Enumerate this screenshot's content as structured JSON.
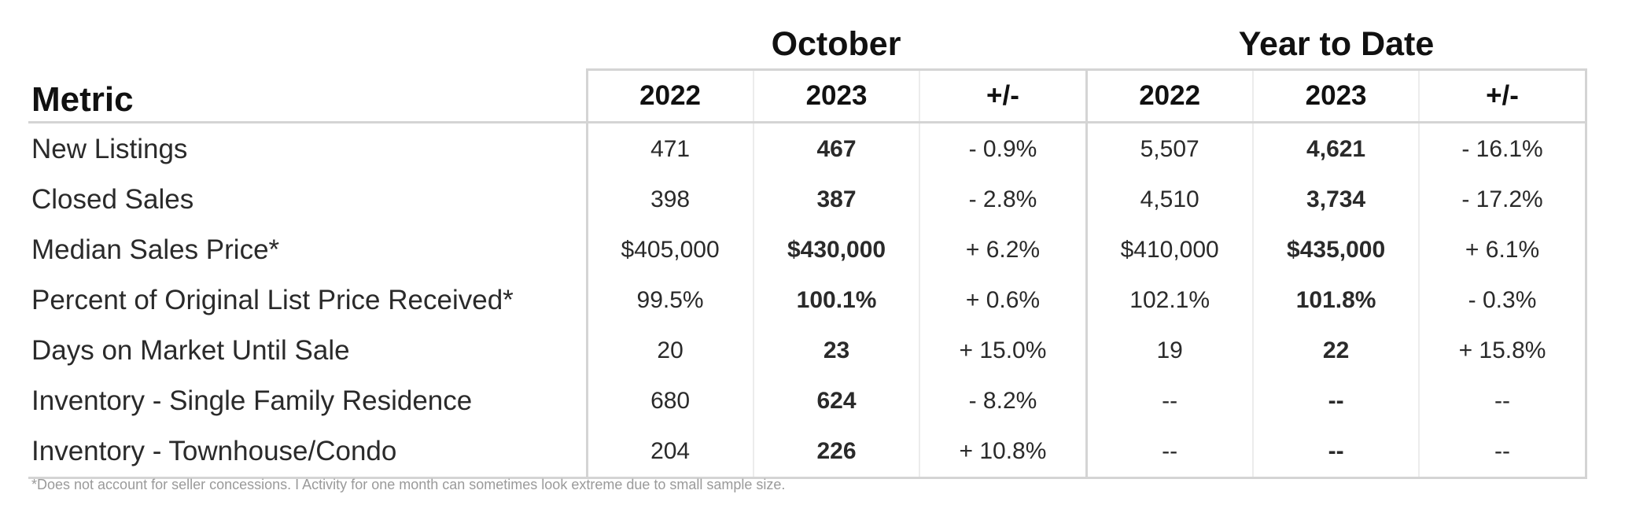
{
  "groups": {
    "october": "October",
    "ytd": "Year to Date"
  },
  "headers": {
    "metric": "Metric",
    "oct_2022": "2022",
    "oct_2023": "2023",
    "oct_change": "+/-",
    "ytd_2022": "2022",
    "ytd_2023": "2023",
    "ytd_change": "+/-"
  },
  "rows": [
    {
      "metric": "New Listings",
      "oct_2022": "471",
      "oct_2023": "467",
      "oct_change": "- 0.9%",
      "ytd_2022": "5,507",
      "ytd_2023": "4,621",
      "ytd_change": "- 16.1%"
    },
    {
      "metric": "Closed Sales",
      "oct_2022": "398",
      "oct_2023": "387",
      "oct_change": "- 2.8%",
      "ytd_2022": "4,510",
      "ytd_2023": "3,734",
      "ytd_change": "- 17.2%"
    },
    {
      "metric": "Median Sales Price*",
      "oct_2022": "$405,000",
      "oct_2023": "$430,000",
      "oct_change": "+ 6.2%",
      "ytd_2022": "$410,000",
      "ytd_2023": "$435,000",
      "ytd_change": "+ 6.1%"
    },
    {
      "metric": "Percent of Original List Price Received*",
      "oct_2022": "99.5%",
      "oct_2023": "100.1%",
      "oct_change": "+ 0.6%",
      "ytd_2022": "102.1%",
      "ytd_2023": "101.8%",
      "ytd_change": "- 0.3%"
    },
    {
      "metric": "Days on Market Until Sale",
      "oct_2022": "20",
      "oct_2023": "23",
      "oct_change": "+ 15.0%",
      "ytd_2022": "19",
      "ytd_2023": "22",
      "ytd_change": "+ 15.8%"
    },
    {
      "metric": "Inventory - Single Family Residence",
      "oct_2022": "680",
      "oct_2023": "624",
      "oct_change": "- 8.2%",
      "ytd_2022": "--",
      "ytd_2023": "--",
      "ytd_change": "--"
    },
    {
      "metric": "Inventory - Townhouse/Condo",
      "oct_2022": "204",
      "oct_2023": "226",
      "oct_change": "+ 10.8%",
      "ytd_2022": "--",
      "ytd_2023": "--",
      "ytd_change": "--"
    }
  ],
  "footnote": "*Does not account for seller concessions. I Activity for one month can sometimes look extreme due to small sample size."
}
